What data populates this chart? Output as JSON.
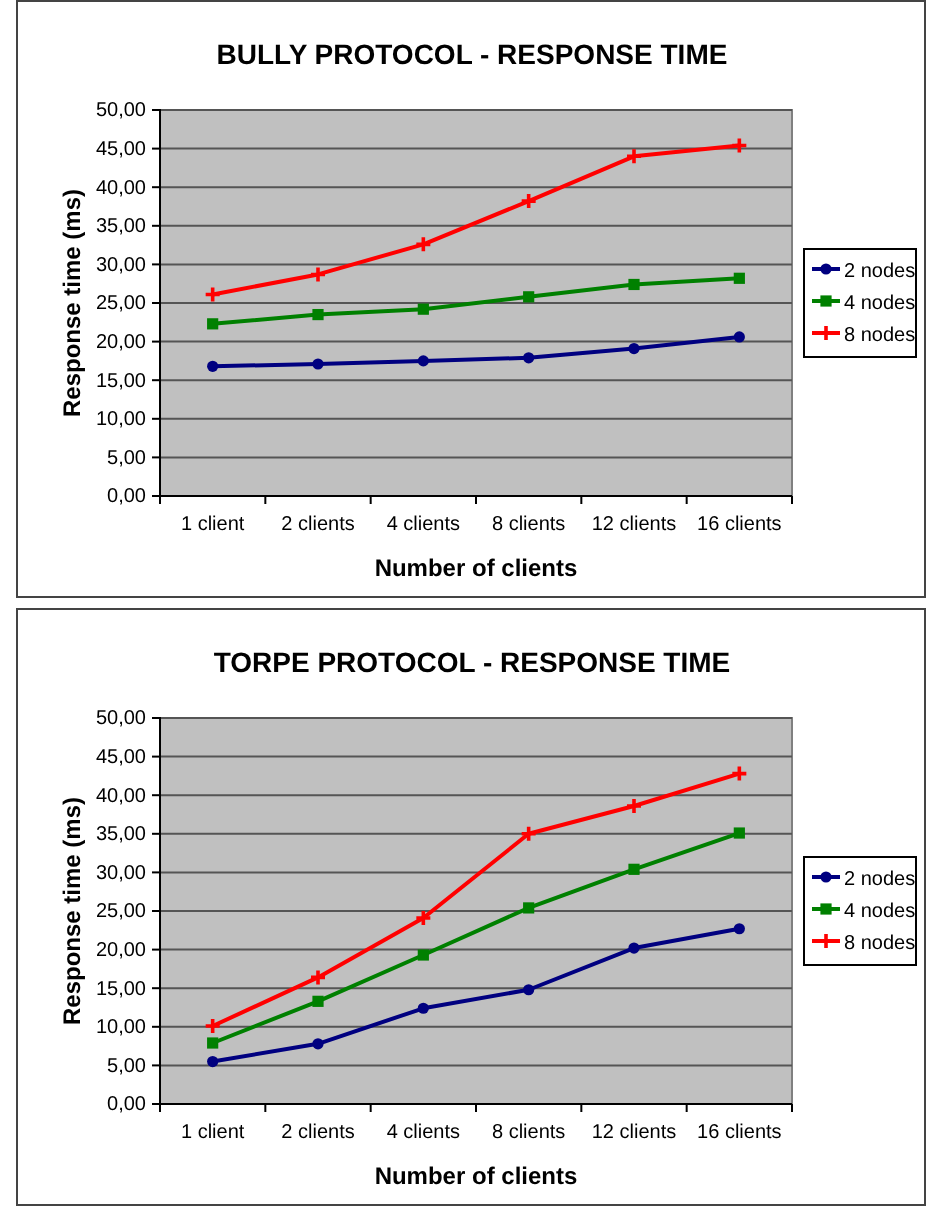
{
  "chart_data": [
    {
      "type": "line",
      "title": "BULLY PROTOCOL - RESPONSE TIME",
      "xlabel": "Number of clients",
      "ylabel": "Response time (ms)",
      "categories": [
        "1 client",
        "2 clients",
        "4 clients",
        "8 clients",
        "12 clients",
        "16 clients"
      ],
      "ylim": [
        0,
        50
      ],
      "yticks": [
        {
          "value": 0,
          "label": "0,00"
        },
        {
          "value": 5,
          "label": "5,00"
        },
        {
          "value": 10,
          "label": "10,00"
        },
        {
          "value": 15,
          "label": "15,00"
        },
        {
          "value": 20,
          "label": "20,00"
        },
        {
          "value": 25,
          "label": "25,00"
        },
        {
          "value": 30,
          "label": "30,00"
        },
        {
          "value": 35,
          "label": "35,00"
        },
        {
          "value": 40,
          "label": "40,00"
        },
        {
          "value": 45,
          "label": "45,00"
        },
        {
          "value": 50,
          "label": "50,00"
        }
      ],
      "grid": "y",
      "legend": "right",
      "series": [
        {
          "name": "2 nodes",
          "color": "#000080",
          "marker": "circle",
          "values": [
            16.8,
            17.1,
            17.5,
            17.9,
            19.1,
            20.6
          ]
        },
        {
          "name": "4 nodes",
          "color": "#008000",
          "marker": "square",
          "values": [
            22.3,
            23.5,
            24.2,
            25.8,
            27.4,
            28.2
          ]
        },
        {
          "name": "8 nodes",
          "color": "#ff0000",
          "marker": "cross",
          "values": [
            26.1,
            28.7,
            32.6,
            38.2,
            44.0,
            45.4
          ]
        }
      ]
    },
    {
      "type": "line",
      "title": "TORPE PROTOCOL - RESPONSE TIME",
      "xlabel": "Number of clients",
      "ylabel": "Response time (ms)",
      "categories": [
        "1 client",
        "2 clients",
        "4 clients",
        "8 clients",
        "12 clients",
        "16 clients"
      ],
      "ylim": [
        0,
        50
      ],
      "yticks": [
        {
          "value": 0,
          "label": "0,00"
        },
        {
          "value": 5,
          "label": "5,00"
        },
        {
          "value": 10,
          "label": "10,00"
        },
        {
          "value": 15,
          "label": "15,00"
        },
        {
          "value": 20,
          "label": "20,00"
        },
        {
          "value": 25,
          "label": "25,00"
        },
        {
          "value": 30,
          "label": "30,00"
        },
        {
          "value": 35,
          "label": "35,00"
        },
        {
          "value": 40,
          "label": "40,00"
        },
        {
          "value": 45,
          "label": "45,00"
        },
        {
          "value": 50,
          "label": "50,00"
        }
      ],
      "grid": "y",
      "legend": "right",
      "series": [
        {
          "name": "2 nodes",
          "color": "#000080",
          "marker": "circle",
          "values": [
            5.5,
            7.8,
            12.4,
            14.8,
            20.2,
            22.7
          ]
        },
        {
          "name": "4 nodes",
          "color": "#008000",
          "marker": "square",
          "values": [
            7.9,
            13.3,
            19.3,
            25.4,
            30.4,
            35.1
          ]
        },
        {
          "name": "8 nodes",
          "color": "#ff0000",
          "marker": "cross",
          "values": [
            10.1,
            16.4,
            24.1,
            35.0,
            38.6,
            42.8
          ]
        }
      ]
    }
  ]
}
